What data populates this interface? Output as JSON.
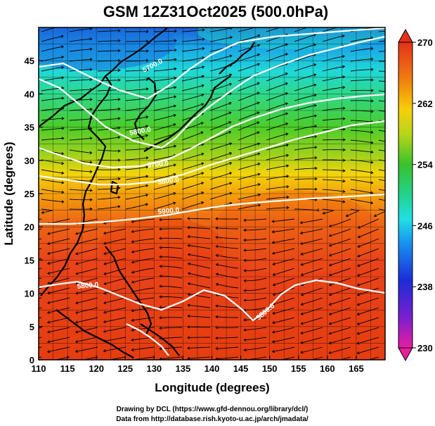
{
  "title": "GSM 12Z31Oct2025 (500.0hPa)",
  "xlabel": "Longitude (degrees)",
  "ylabel": "Latitude (degrees)",
  "x_ticks": [
    "110",
    "115",
    "120",
    "125",
    "130",
    "135",
    "140",
    "145",
    "150",
    "155",
    "160",
    "165"
  ],
  "y_ticks": [
    "0",
    "5",
    "10",
    "15",
    "20",
    "25",
    "30",
    "35",
    "40",
    "45"
  ],
  "colorbar_ticks": [
    "230",
    "238",
    "246",
    "254",
    "262",
    "270"
  ],
  "credits": [
    "Drawing by DCL (https://www.gfd-dennou.org/library/dcl/)",
    "Data from http://database.rish.kyoto-u.ac.jp/arch/jmadata/"
  ],
  "contour_labels": [
    "5700.0",
    "5800.0",
    "5700.0",
    "5800.0",
    "5900.0",
    "5800.0",
    "5800.0"
  ],
  "map": {
    "lon_range": [
      110,
      170
    ],
    "lat_range": [
      0,
      50
    ],
    "field": "temperature (K)",
    "color_range": [
      230,
      270
    ],
    "contour_field": "geopotential height (m)",
    "overlay": "streamlines",
    "grid": true
  },
  "colors": {
    "cold": "#1e4fd0",
    "cool": "#22d8e0",
    "mild": "#33cc33",
    "warm": "#f2b800",
    "hot": "#e8380e",
    "contour": "#ffffff",
    "coast": "#000000"
  }
}
